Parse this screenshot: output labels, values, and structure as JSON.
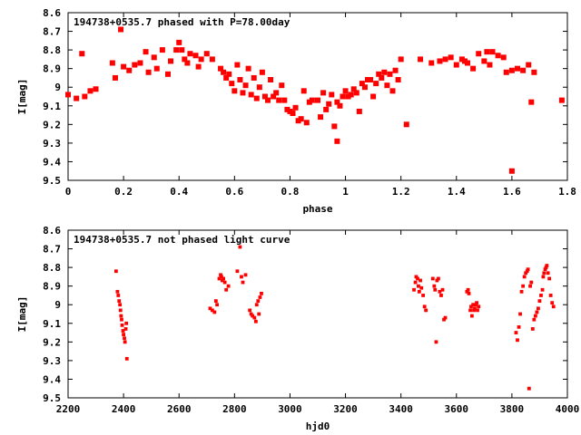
{
  "chart_data": [
    {
      "type": "scatter",
      "title": "194738+0535.7 phased with P=78.00day",
      "xlabel": "phase",
      "ylabel": "I[mag]",
      "xlim": [
        0,
        1.8
      ],
      "ylim": [
        8.6,
        9.5
      ],
      "y_inverted": true,
      "xticks": [
        "0",
        "0.2",
        "0.4",
        "0.6",
        "0.8",
        "1",
        "1.2",
        "1.4",
        "1.6",
        "1.8"
      ],
      "yticks": [
        "8.6",
        "8.7",
        "8.8",
        "8.9",
        "9",
        "9.1",
        "9.2",
        "9.3",
        "9.4",
        "9.5"
      ],
      "grid": false,
      "marker_color": "#ff0000",
      "series": [
        {
          "points": [
            [
              0.0,
              9.04
            ],
            [
              0.03,
              9.06
            ],
            [
              0.05,
              8.82
            ],
            [
              0.06,
              9.05
            ],
            [
              0.08,
              9.02
            ],
            [
              0.1,
              9.01
            ],
            [
              0.16,
              8.87
            ],
            [
              0.17,
              8.95
            ],
            [
              0.19,
              8.69
            ],
            [
              0.2,
              8.89
            ],
            [
              0.22,
              8.91
            ],
            [
              0.24,
              8.88
            ],
            [
              0.26,
              8.87
            ],
            [
              0.28,
              8.81
            ],
            [
              0.29,
              8.92
            ],
            [
              0.31,
              8.84
            ],
            [
              0.32,
              8.9
            ],
            [
              0.34,
              8.8
            ],
            [
              0.36,
              8.93
            ],
            [
              0.37,
              8.86
            ],
            [
              0.39,
              8.8
            ],
            [
              0.4,
              8.76
            ],
            [
              0.41,
              8.8
            ],
            [
              0.42,
              8.85
            ],
            [
              0.43,
              8.87
            ],
            [
              0.44,
              8.82
            ],
            [
              0.46,
              8.83
            ],
            [
              0.47,
              8.89
            ],
            [
              0.48,
              8.85
            ],
            [
              0.5,
              8.82
            ],
            [
              0.52,
              8.85
            ],
            [
              0.55,
              8.9
            ],
            [
              0.56,
              8.92
            ],
            [
              0.57,
              8.95
            ],
            [
              0.58,
              8.93
            ],
            [
              0.59,
              8.98
            ],
            [
              0.6,
              9.02
            ],
            [
              0.61,
              8.88
            ],
            [
              0.62,
              8.96
            ],
            [
              0.63,
              9.03
            ],
            [
              0.64,
              8.99
            ],
            [
              0.65,
              8.9
            ],
            [
              0.66,
              9.04
            ],
            [
              0.67,
              8.95
            ],
            [
              0.68,
              9.06
            ],
            [
              0.69,
              9.0
            ],
            [
              0.7,
              8.92
            ],
            [
              0.71,
              9.05
            ],
            [
              0.72,
              9.07
            ],
            [
              0.73,
              8.96
            ],
            [
              0.74,
              9.05
            ],
            [
              0.75,
              9.03
            ],
            [
              0.76,
              9.07
            ],
            [
              0.77,
              8.99
            ],
            [
              0.78,
              9.07
            ],
            [
              0.79,
              9.12
            ],
            [
              0.8,
              9.13
            ],
            [
              0.81,
              9.14
            ],
            [
              0.82,
              9.11
            ],
            [
              0.83,
              9.18
            ],
            [
              0.84,
              9.17
            ],
            [
              0.85,
              9.02
            ],
            [
              0.86,
              9.19
            ],
            [
              0.87,
              9.08
            ],
            [
              0.88,
              9.07
            ],
            [
              0.9,
              9.07
            ],
            [
              0.91,
              9.16
            ],
            [
              0.92,
              9.03
            ],
            [
              0.93,
              9.12
            ],
            [
              0.94,
              9.09
            ],
            [
              0.95,
              9.04
            ],
            [
              0.96,
              9.21
            ],
            [
              0.97,
              9.08
            ],
            [
              0.98,
              9.1
            ],
            [
              0.99,
              9.05
            ],
            [
              1.0,
              9.02
            ],
            [
              1.01,
              9.05
            ],
            [
              1.02,
              9.04
            ],
            [
              1.03,
              9.01
            ],
            [
              1.04,
              9.03
            ],
            [
              1.05,
              9.13
            ],
            [
              1.06,
              8.98
            ],
            [
              1.07,
              9.0
            ],
            [
              1.08,
              8.96
            ],
            [
              1.09,
              8.96
            ],
            [
              1.1,
              9.05
            ],
            [
              1.11,
              8.98
            ],
            [
              1.12,
              8.93
            ],
            [
              1.13,
              8.95
            ],
            [
              1.14,
              8.92
            ],
            [
              1.15,
              8.99
            ],
            [
              1.16,
              8.93
            ],
            [
              1.17,
              9.02
            ],
            [
              1.18,
              8.91
            ],
            [
              1.19,
              8.96
            ],
            [
              1.2,
              8.85
            ],
            [
              1.22,
              9.2
            ],
            [
              1.27,
              8.85
            ],
            [
              1.31,
              8.87
            ],
            [
              1.34,
              8.86
            ],
            [
              1.36,
              8.85
            ],
            [
              1.38,
              8.84
            ],
            [
              1.4,
              8.88
            ],
            [
              1.42,
              8.85
            ],
            [
              1.43,
              8.86
            ],
            [
              1.44,
              8.87
            ],
            [
              1.46,
              8.9
            ],
            [
              1.48,
              8.82
            ],
            [
              1.5,
              8.86
            ],
            [
              1.51,
              8.81
            ],
            [
              1.52,
              8.88
            ],
            [
              1.53,
              8.81
            ],
            [
              1.55,
              8.83
            ],
            [
              1.57,
              8.84
            ],
            [
              1.58,
              8.92
            ],
            [
              1.6,
              8.91
            ],
            [
              1.62,
              8.9
            ],
            [
              1.64,
              8.91
            ],
            [
              1.66,
              8.88
            ],
            [
              1.67,
              9.08
            ],
            [
              1.68,
              8.92
            ],
            [
              1.78,
              9.07
            ],
            [
              0.97,
              9.29
            ],
            [
              1.6,
              9.45
            ]
          ]
        }
      ]
    },
    {
      "type": "scatter",
      "title": "194738+0535.7 not phased light curve",
      "xlabel": "hjd0",
      "ylabel": "I[mag]",
      "xlim": [
        2200,
        4000
      ],
      "ylim": [
        8.6,
        9.5
      ],
      "y_inverted": true,
      "xticks": [
        "2200",
        "2400",
        "2600",
        "2800",
        "3000",
        "3200",
        "3400",
        "3600",
        "3800",
        "4000"
      ],
      "yticks": [
        "8.6",
        "8.7",
        "8.8",
        "8.9",
        "9",
        "9.1",
        "9.2",
        "9.3",
        "9.4",
        "9.5"
      ],
      "grid": false,
      "marker_color": "#ff0000",
      "series": [
        {
          "points": [
            [
              2373,
              8.82
            ],
            [
              2378,
              8.93
            ],
            [
              2381,
              8.95
            ],
            [
              2384,
              8.98
            ],
            [
              2387,
              9.0
            ],
            [
              2389,
              9.03
            ],
            [
              2391,
              9.06
            ],
            [
              2393,
              9.08
            ],
            [
              2395,
              9.11
            ],
            [
              2398,
              9.14
            ],
            [
              2400,
              9.16
            ],
            [
              2403,
              9.18
            ],
            [
              2405,
              9.2
            ],
            [
              2408,
              9.13
            ],
            [
              2410,
              9.1
            ],
            [
              2412,
              9.29
            ],
            [
              2712,
              9.02
            ],
            [
              2720,
              9.03
            ],
            [
              2728,
              9.04
            ],
            [
              2733,
              8.98
            ],
            [
              2737,
              9.0
            ],
            [
              2745,
              8.86
            ],
            [
              2750,
              8.84
            ],
            [
              2753,
              8.85
            ],
            [
              2756,
              8.87
            ],
            [
              2760,
              8.86
            ],
            [
              2765,
              8.88
            ],
            [
              2770,
              8.92
            ],
            [
              2778,
              8.9
            ],
            [
              2810,
              8.82
            ],
            [
              2820,
              8.69
            ],
            [
              2825,
              8.85
            ],
            [
              2830,
              8.88
            ],
            [
              2840,
              8.84
            ],
            [
              2855,
              9.03
            ],
            [
              2860,
              9.05
            ],
            [
              2865,
              9.06
            ],
            [
              2872,
              9.07
            ],
            [
              2877,
              9.09
            ],
            [
              2880,
              9.0
            ],
            [
              2885,
              8.98
            ],
            [
              2888,
              9.05
            ],
            [
              2892,
              8.96
            ],
            [
              2897,
              8.94
            ],
            [
              3447,
              8.92
            ],
            [
              3452,
              8.88
            ],
            [
              3455,
              8.85
            ],
            [
              3460,
              8.86
            ],
            [
              3463,
              8.9
            ],
            [
              3466,
              8.93
            ],
            [
              3470,
              8.87
            ],
            [
              3474,
              8.91
            ],
            [
              3480,
              8.95
            ],
            [
              3485,
              9.01
            ],
            [
              3490,
              9.03
            ],
            [
              3515,
              8.86
            ],
            [
              3520,
              8.9
            ],
            [
              3523,
              8.92
            ],
            [
              3527,
              9.2
            ],
            [
              3530,
              8.87
            ],
            [
              3535,
              8.86
            ],
            [
              3540,
              8.93
            ],
            [
              3545,
              8.95
            ],
            [
              3550,
              8.92
            ],
            [
              3555,
              9.08
            ],
            [
              3560,
              9.07
            ],
            [
              3638,
              8.93
            ],
            [
              3642,
              8.92
            ],
            [
              3645,
              8.94
            ],
            [
              3650,
              9.03
            ],
            [
              3653,
              9.01
            ],
            [
              3656,
              9.06
            ],
            [
              3660,
              9.0
            ],
            [
              3663,
              9.03
            ],
            [
              3666,
              9.02
            ],
            [
              3670,
              9.0
            ],
            [
              3673,
              8.99
            ],
            [
              3676,
              9.03
            ],
            [
              3680,
              9.01
            ],
            [
              3815,
              9.15
            ],
            [
              3820,
              9.19
            ],
            [
              3825,
              9.12
            ],
            [
              3830,
              9.05
            ],
            [
              3835,
              8.93
            ],
            [
              3840,
              8.9
            ],
            [
              3845,
              8.85
            ],
            [
              3850,
              8.83
            ],
            [
              3855,
              8.82
            ],
            [
              3858,
              8.81
            ],
            [
              3862,
              9.45
            ],
            [
              3866,
              8.9
            ],
            [
              3870,
              8.88
            ],
            [
              3875,
              9.13
            ],
            [
              3880,
              9.08
            ],
            [
              3885,
              9.06
            ],
            [
              3890,
              9.04
            ],
            [
              3895,
              9.02
            ],
            [
              3900,
              8.98
            ],
            [
              3905,
              8.95
            ],
            [
              3910,
              8.92
            ],
            [
              3913,
              8.85
            ],
            [
              3916,
              8.83
            ],
            [
              3920,
              8.81
            ],
            [
              3923,
              8.8
            ],
            [
              3926,
              8.79
            ],
            [
              3930,
              8.83
            ],
            [
              3935,
              8.86
            ],
            [
              3940,
              8.95
            ],
            [
              3945,
              8.99
            ],
            [
              3950,
              9.01
            ]
          ]
        }
      ]
    }
  ]
}
